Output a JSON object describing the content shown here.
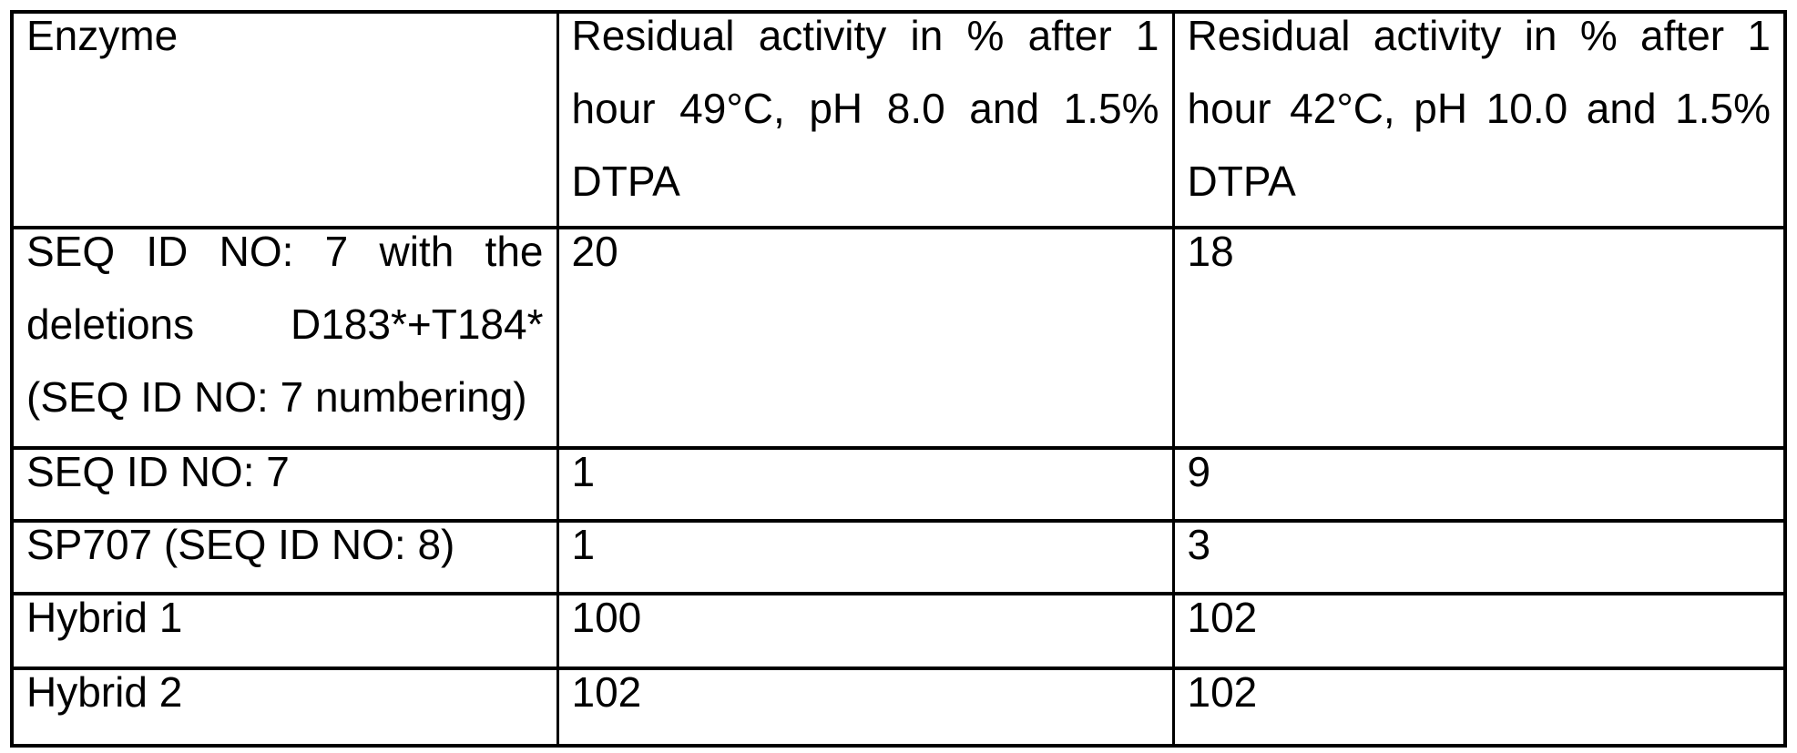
{
  "table": {
    "columns": [
      "Enzyme",
      "Residual activity in % after 1 hour 49°C, pH 8.0 and 1.5% DTPA",
      "Residual activity in % after 1 hour 42°C, pH 10.0 and 1.5% DTPA"
    ],
    "rows": [
      {
        "enzyme": "SEQ ID NO: 7 with the deletions D183*+T184* (SEQ ID NO: 7 numbering)",
        "activity_49c_ph8": "20",
        "activity_42c_ph10": "18"
      },
      {
        "enzyme": "SEQ ID NO: 7",
        "activity_49c_ph8": "1",
        "activity_42c_ph10": "9"
      },
      {
        "enzyme": "SP707 (SEQ ID NO: 8)",
        "activity_49c_ph8": "1",
        "activity_42c_ph10": "3"
      },
      {
        "enzyme": "Hybrid 1",
        "activity_49c_ph8": "100",
        "activity_42c_ph10": "102"
      },
      {
        "enzyme": "Hybrid 2",
        "activity_49c_ph8": "102",
        "activity_42c_ph10": "102"
      }
    ]
  }
}
